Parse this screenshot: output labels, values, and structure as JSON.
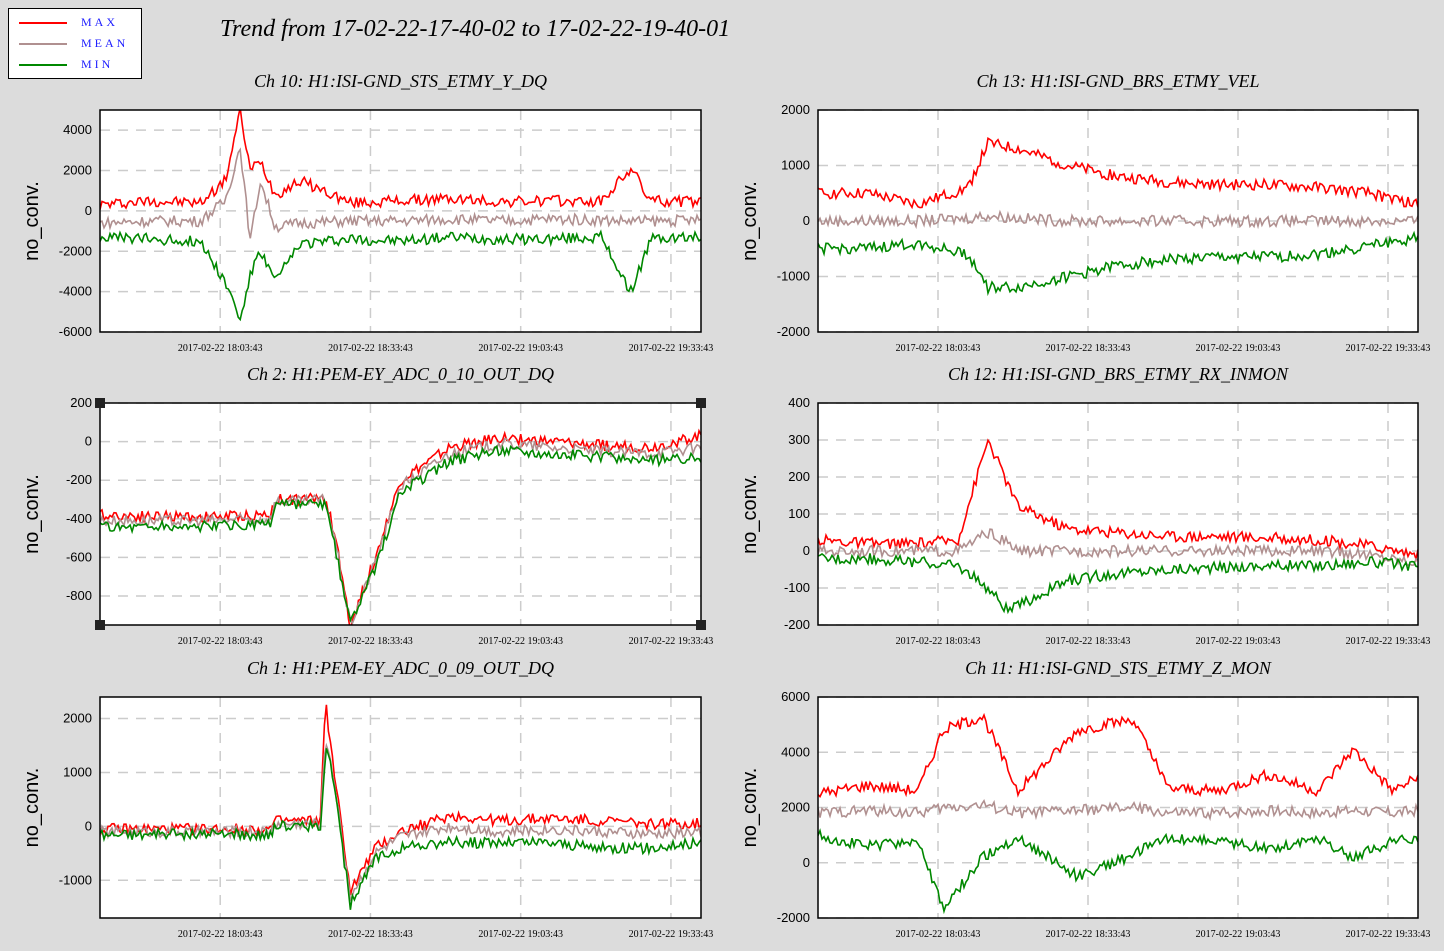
{
  "legend": {
    "items": [
      {
        "label": "MAX",
        "color": "#ff0000"
      },
      {
        "label": "MEAN",
        "color": "#b09090"
      },
      {
        "label": "MIN",
        "color": "#008800"
      }
    ]
  },
  "title": "Trend from 17-02-22-17-40-02 to 17-02-22-19-40-01",
  "colors": {
    "max": "#ff0000",
    "mean": "#b09090",
    "min": "#008800",
    "plot_bg": "#ffffff",
    "page_bg": "#dcdcdc",
    "grid": "#cccccc"
  },
  "chart_data": [
    {
      "type": "line",
      "title": "Ch 10: H1:ISI-GND_STS_ETMY_Y_DQ",
      "ylabel": "no_conv.",
      "xlabel": "",
      "xticks": [
        "2017-02-22 18:03:43",
        "2017-02-22 18:33:43",
        "2017-02-22 19:03:43",
        "2017-02-22 19:33:43"
      ],
      "ylim": [
        -6000,
        5000
      ],
      "yticks": [
        -6000,
        -4000,
        -2000,
        0,
        2000,
        4000
      ],
      "grid": true,
      "series": [
        {
          "name": "MAX",
          "x": [
            0,
            10,
            20,
            25,
            28,
            30,
            32,
            35,
            40,
            50,
            60,
            70,
            80,
            90,
            100,
            106,
            110,
            120
          ],
          "y": [
            300,
            500,
            400,
            1500,
            4900,
            2000,
            2500,
            800,
            1500,
            400,
            500,
            600,
            450,
            500,
            450,
            2100,
            500,
            450
          ]
        },
        {
          "name": "MEAN",
          "x": [
            0,
            10,
            20,
            25,
            28,
            30,
            32,
            35,
            40,
            50,
            60,
            70,
            80,
            90,
            100,
            106,
            110,
            120
          ],
          "y": [
            -600,
            -500,
            -500,
            500,
            3200,
            -1500,
            1500,
            -800,
            -600,
            -500,
            -500,
            -400,
            -500,
            -400,
            -450,
            -500,
            -500,
            -450
          ]
        },
        {
          "name": "MIN",
          "x": [
            0,
            10,
            20,
            25,
            28,
            30,
            32,
            35,
            40,
            50,
            60,
            70,
            80,
            90,
            100,
            106,
            110,
            120
          ],
          "y": [
            -1300,
            -1400,
            -1500,
            -3500,
            -5400,
            -3200,
            -2000,
            -3500,
            -1600,
            -1400,
            -1500,
            -1300,
            -1400,
            -1400,
            -1300,
            -4000,
            -1400,
            -1300
          ]
        }
      ]
    },
    {
      "type": "line",
      "title": "Ch 13: H1:ISI-GND_BRS_ETMY_VEL",
      "ylabel": "no_conv.",
      "xlabel": "",
      "xticks": [
        "2017-02-22 18:03:43",
        "2017-02-22 18:33:43",
        "2017-02-22 19:03:43",
        "2017-02-22 19:33:43"
      ],
      "ylim": [
        -2000,
        2000
      ],
      "yticks": [
        -2000,
        -1000,
        0,
        1000,
        2000
      ],
      "grid": true,
      "series": [
        {
          "name": "MAX",
          "x": [
            0,
            10,
            20,
            30,
            34,
            40,
            50,
            60,
            70,
            80,
            90,
            100,
            110,
            120
          ],
          "y": [
            500,
            500,
            300,
            600,
            1400,
            1300,
            1000,
            800,
            700,
            650,
            650,
            600,
            500,
            300
          ]
        },
        {
          "name": "MEAN",
          "x": [
            0,
            10,
            20,
            30,
            34,
            40,
            50,
            60,
            70,
            80,
            90,
            100,
            110,
            120
          ],
          "y": [
            0,
            0,
            0,
            50,
            100,
            50,
            0,
            0,
            0,
            0,
            0,
            0,
            0,
            0
          ]
        },
        {
          "name": "MIN",
          "x": [
            0,
            10,
            20,
            30,
            34,
            40,
            50,
            60,
            70,
            80,
            90,
            100,
            110,
            120
          ],
          "y": [
            -500,
            -500,
            -400,
            -600,
            -1200,
            -1200,
            -1000,
            -800,
            -700,
            -650,
            -650,
            -600,
            -450,
            -300
          ]
        }
      ]
    },
    {
      "type": "line",
      "title": "Ch 2: H1:PEM-EY_ADC_0_10_OUT_DQ",
      "ylabel": "no_conv.",
      "xlabel": "",
      "xticks": [
        "2017-02-22 18:03:43",
        "2017-02-22 18:33:43",
        "2017-02-22 19:03:43",
        "2017-02-22 19:33:43"
      ],
      "ylim": [
        -950,
        200
      ],
      "yticks": [
        -800,
        -600,
        -400,
        -200,
        0,
        200
      ],
      "grid": true,
      "series": [
        {
          "name": "MAX",
          "x": [
            0,
            20,
            34,
            35,
            40,
            45,
            47,
            50,
            55,
            60,
            70,
            80,
            90,
            100,
            110,
            120
          ],
          "y": [
            -380,
            -390,
            -380,
            -300,
            -300,
            -290,
            -500,
            -950,
            -600,
            -200,
            -30,
            20,
            0,
            -20,
            -30,
            30
          ]
        },
        {
          "name": "MEAN",
          "x": [
            0,
            20,
            34,
            35,
            40,
            45,
            47,
            50,
            55,
            60,
            70,
            80,
            90,
            100,
            110,
            120
          ],
          "y": [
            -410,
            -410,
            -400,
            -310,
            -310,
            -300,
            -520,
            -950,
            -620,
            -230,
            -60,
            -10,
            -30,
            -50,
            -60,
            -30
          ]
        },
        {
          "name": "MIN",
          "x": [
            0,
            20,
            34,
            35,
            40,
            45,
            47,
            50,
            55,
            60,
            70,
            80,
            90,
            100,
            110,
            120
          ],
          "y": [
            -440,
            -440,
            -430,
            -320,
            -330,
            -330,
            -560,
            -950,
            -650,
            -260,
            -100,
            -40,
            -60,
            -80,
            -100,
            -80
          ]
        }
      ]
    },
    {
      "type": "line",
      "title": "Ch 12: H1:ISI-GND_BRS_ETMY_RX_INMON",
      "ylabel": "no_conv.",
      "xlabel": "",
      "xticks": [
        "2017-02-22 18:03:43",
        "2017-02-22 18:33:43",
        "2017-02-22 19:03:43",
        "2017-02-22 19:33:43"
      ],
      "ylim": [
        -200,
        400
      ],
      "yticks": [
        -200,
        -100,
        0,
        100,
        200,
        300,
        400
      ],
      "grid": true,
      "series": [
        {
          "name": "MAX",
          "x": [
            0,
            10,
            20,
            28,
            34,
            38,
            40,
            50,
            60,
            70,
            80,
            90,
            100,
            110,
            120
          ],
          "y": [
            30,
            20,
            20,
            30,
            300,
            180,
            120,
            60,
            50,
            40,
            40,
            35,
            30,
            15,
            -10
          ]
        },
        {
          "name": "MEAN",
          "x": [
            0,
            10,
            20,
            28,
            34,
            38,
            40,
            50,
            60,
            70,
            80,
            90,
            100,
            110,
            120
          ],
          "y": [
            0,
            0,
            0,
            0,
            50,
            20,
            0,
            0,
            0,
            0,
            0,
            0,
            0,
            -10,
            -30
          ]
        },
        {
          "name": "MIN",
          "x": [
            0,
            10,
            20,
            28,
            34,
            38,
            40,
            50,
            60,
            70,
            80,
            90,
            100,
            110,
            120
          ],
          "y": [
            -20,
            -20,
            -30,
            -40,
            -100,
            -160,
            -150,
            -80,
            -60,
            -50,
            -45,
            -40,
            -40,
            -30,
            -40
          ]
        }
      ]
    },
    {
      "type": "line",
      "title": "Ch 1: H1:PEM-EY_ADC_0_09_OUT_DQ",
      "ylabel": "no_conv.",
      "xlabel": "",
      "xticks": [
        "2017-02-22 18:03:43",
        "2017-02-22 18:33:43",
        "2017-02-22 19:03:43",
        "2017-02-22 19:33:43"
      ],
      "ylim": [
        -1700,
        2400
      ],
      "yticks": [
        -1000,
        0,
        1000,
        2000
      ],
      "grid": true,
      "series": [
        {
          "name": "MAX",
          "x": [
            0,
            20,
            34,
            35,
            44,
            45,
            46,
            50,
            55,
            60,
            70,
            80,
            90,
            100,
            110,
            120
          ],
          "y": [
            -50,
            -50,
            -50,
            100,
            100,
            2400,
            1500,
            -1200,
            -400,
            -100,
            200,
            100,
            150,
            100,
            50,
            50
          ]
        },
        {
          "name": "MEAN",
          "x": [
            0,
            20,
            34,
            35,
            44,
            45,
            46,
            50,
            55,
            60,
            70,
            80,
            90,
            100,
            110,
            120
          ],
          "y": [
            -100,
            -100,
            -100,
            50,
            50,
            1600,
            1300,
            -1300,
            -500,
            -200,
            0,
            -100,
            -50,
            -100,
            -150,
            -100
          ]
        },
        {
          "name": "MIN",
          "x": [
            0,
            20,
            34,
            35,
            44,
            45,
            46,
            50,
            55,
            60,
            70,
            80,
            90,
            100,
            110,
            120
          ],
          "y": [
            -150,
            -150,
            -150,
            0,
            0,
            1400,
            1200,
            -1450,
            -600,
            -400,
            -300,
            -300,
            -300,
            -400,
            -400,
            -300
          ]
        }
      ]
    },
    {
      "type": "line",
      "title": "Ch 11: H1:ISI-GND_STS_ETMY_Z_MON",
      "ylabel": "no_conv.",
      "xlabel": "",
      "xticks": [
        "2017-02-22 18:03:43",
        "2017-02-22 18:33:43",
        "2017-02-22 19:03:43",
        "2017-02-22 19:33:43"
      ],
      "ylim": [
        -2000,
        6000
      ],
      "yticks": [
        -2000,
        0,
        2000,
        4000,
        6000
      ],
      "grid": true,
      "series": [
        {
          "name": "MAX",
          "x": [
            0,
            10,
            20,
            25,
            33,
            40,
            52,
            63,
            70,
            80,
            90,
            100,
            107,
            115,
            120
          ],
          "y": [
            2500,
            2800,
            2600,
            4800,
            5300,
            2600,
            4800,
            5200,
            2700,
            2600,
            3200,
            2600,
            4100,
            2600,
            3100
          ]
        },
        {
          "name": "MEAN",
          "x": [
            0,
            10,
            20,
            25,
            33,
            40,
            52,
            63,
            70,
            80,
            90,
            100,
            107,
            115,
            120
          ],
          "y": [
            1800,
            1900,
            1800,
            2000,
            2100,
            1800,
            1900,
            2000,
            1800,
            1800,
            1900,
            1800,
            1900,
            1800,
            1900
          ]
        },
        {
          "name": "MIN",
          "x": [
            0,
            10,
            20,
            25,
            33,
            40,
            52,
            63,
            70,
            80,
            90,
            100,
            107,
            115,
            120
          ],
          "y": [
            1000,
            600,
            800,
            -1700,
            200,
            900,
            -500,
            300,
            900,
            800,
            500,
            900,
            200,
            800,
            900
          ]
        }
      ]
    }
  ]
}
